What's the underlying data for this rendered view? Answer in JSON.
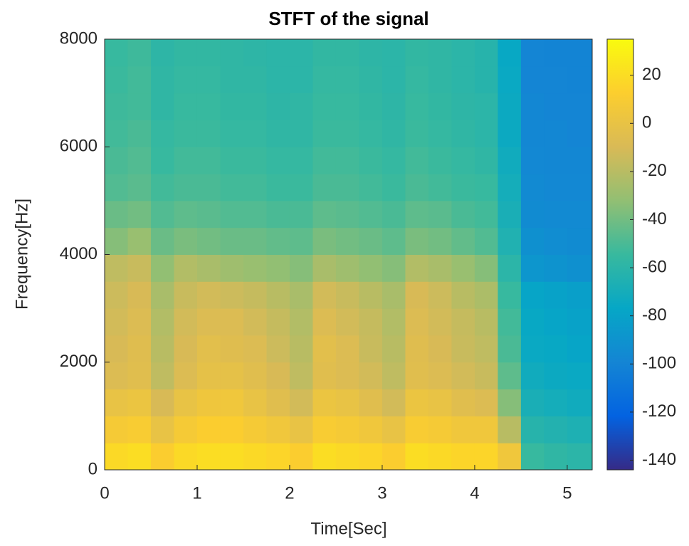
{
  "chart_data": {
    "type": "heatmap",
    "title": "STFT of the signal",
    "xlabel": "Time[Sec]",
    "ylabel": "Frequency[Hz]",
    "x_edges": [
      0,
      0.25,
      0.5,
      0.75,
      1,
      1.25,
      1.5,
      1.75,
      2,
      2.25,
      2.5,
      2.75,
      3,
      3.25,
      3.5,
      3.75,
      4,
      4.25,
      4.5,
      4.75,
      5,
      5.27
    ],
    "y_edges": [
      0,
      500,
      1000,
      1500,
      2000,
      2500,
      3000,
      3500,
      4000,
      4500,
      5000,
      5500,
      6000,
      6500,
      7000,
      7500,
      8000
    ],
    "values": [
      [
        18,
        20,
        12,
        18,
        20,
        20,
        18,
        16,
        12,
        20,
        18,
        16,
        12,
        20,
        18,
        16,
        16,
        5,
        -55,
        -58,
        -60
      ],
      [
        8,
        10,
        0,
        8,
        12,
        12,
        8,
        5,
        0,
        10,
        8,
        5,
        0,
        10,
        8,
        5,
        5,
        -20,
        -62,
        -64,
        -66
      ],
      [
        0,
        2,
        -10,
        0,
        4,
        5,
        0,
        -5,
        -12,
        2,
        0,
        -5,
        -12,
        2,
        0,
        -5,
        -8,
        -35,
        -68,
        -70,
        -72
      ],
      [
        -8,
        -5,
        -18,
        -8,
        -2,
        -2,
        -5,
        -10,
        -18,
        -5,
        -8,
        -12,
        -18,
        -5,
        -8,
        -12,
        -15,
        -45,
        -72,
        -74,
        -75
      ],
      [
        -10,
        -6,
        -20,
        -10,
        -4,
        -6,
        -8,
        -14,
        -20,
        -4,
        -8,
        -15,
        -20,
        -6,
        -10,
        -15,
        -18,
        -50,
        -75,
        -76,
        -78
      ],
      [
        -12,
        -8,
        -22,
        -12,
        -8,
        -8,
        -12,
        -16,
        -22,
        -8,
        -12,
        -16,
        -22,
        -8,
        -12,
        -16,
        -20,
        -52,
        -76,
        -78,
        -80
      ],
      [
        -14,
        -10,
        -25,
        -15,
        -12,
        -14,
        -16,
        -20,
        -25,
        -12,
        -15,
        -20,
        -25,
        -10,
        -14,
        -20,
        -24,
        -55,
        -78,
        -80,
        -82
      ],
      [
        -18,
        -15,
        -32,
        -22,
        -25,
        -28,
        -30,
        -32,
        -35,
        -25,
        -28,
        -32,
        -35,
        -22,
        -25,
        -30,
        -35,
        -60,
        -88,
        -90,
        -92
      ],
      [
        -35,
        -30,
        -42,
        -38,
        -40,
        -42,
        -42,
        -44,
        -45,
        -38,
        -40,
        -42,
        -45,
        -38,
        -40,
        -44,
        -48,
        -65,
        -92,
        -94,
        -95
      ],
      [
        -42,
        -40,
        -48,
        -45,
        -46,
        -48,
        -48,
        -50,
        -50,
        -45,
        -46,
        -48,
        -50,
        -45,
        -46,
        -50,
        -52,
        -68,
        -95,
        -96,
        -96
      ],
      [
        -48,
        -46,
        -52,
        -50,
        -50,
        -52,
        -52,
        -54,
        -54,
        -50,
        -50,
        -52,
        -54,
        -50,
        -52,
        -54,
        -55,
        -70,
        -96,
        -97,
        -97
      ],
      [
        -50,
        -48,
        -55,
        -52,
        -52,
        -54,
        -54,
        -56,
        -56,
        -52,
        -52,
        -54,
        -56,
        -52,
        -54,
        -56,
        -58,
        -72,
        -97,
        -98,
        -98
      ],
      [
        -52,
        -50,
        -56,
        -54,
        -54,
        -56,
        -56,
        -58,
        -58,
        -54,
        -54,
        -56,
        -58,
        -54,
        -56,
        -58,
        -60,
        -74,
        -98,
        -98,
        -99
      ],
      [
        -53,
        -52,
        -58,
        -55,
        -55,
        -57,
        -57,
        -59,
        -58,
        -55,
        -55,
        -57,
        -59,
        -55,
        -57,
        -59,
        -60,
        -74,
        -98,
        -99,
        -99
      ],
      [
        -54,
        -52,
        -58,
        -56,
        -56,
        -58,
        -58,
        -60,
        -60,
        -56,
        -56,
        -58,
        -60,
        -56,
        -58,
        -60,
        -62,
        -75,
        -99,
        -99,
        -100
      ],
      [
        -55,
        -53,
        -59,
        -57,
        -57,
        -58,
        -59,
        -60,
        -60,
        -57,
        -57,
        -59,
        -60,
        -57,
        -58,
        -60,
        -62,
        -76,
        -99,
        -100,
        -100
      ]
    ],
    "xlim": [
      0,
      5.27
    ],
    "xticks": [
      0,
      1,
      2,
      3,
      4,
      5
    ],
    "ylim": [
      0,
      8000
    ],
    "yticks": [
      0,
      2000,
      4000,
      6000,
      8000
    ],
    "clim": [
      -144,
      35
    ],
    "cticks": [
      -140,
      -120,
      -100,
      -80,
      -60,
      -40,
      -20,
      0,
      20
    ],
    "colormap": [
      "#352a87",
      "#0363e1",
      "#1485d4",
      "#06a7c6",
      "#38b99e",
      "#92bf73",
      "#d9ba56",
      "#fcce2e",
      "#f9fb0e"
    ]
  }
}
